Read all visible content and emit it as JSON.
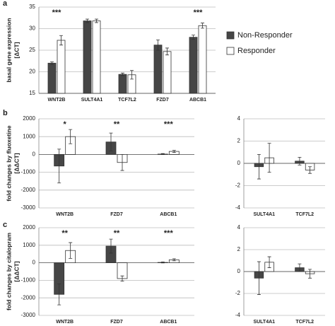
{
  "chart_data": [
    {
      "type": "bar",
      "panel": "a",
      "ylabel": "basal gene expression",
      "ylabel2": "[ΔCT]",
      "categories": [
        "WNT2B",
        "SULT4A1",
        "TCF7L2",
        "FZD7",
        "ABCB1"
      ],
      "series": [
        {
          "name": "Non-Responder",
          "color": "#464646",
          "values": [
            22,
            31.8,
            19.4,
            26.2,
            28
          ],
          "error": [
            0.3,
            0.4,
            0.3,
            1.2,
            0.5
          ]
        },
        {
          "name": "Responder",
          "color": "#ffffff",
          "values": [
            27.3,
            31.8,
            19.3,
            24.7,
            30.7
          ],
          "error": [
            1.1,
            0.4,
            1.0,
            0.8,
            0.6
          ]
        }
      ],
      "annotations": [
        "***",
        null,
        null,
        null,
        "***"
      ],
      "ylim": [
        15,
        35
      ],
      "yticks": [
        15,
        20,
        25,
        30,
        35
      ],
      "grid": true,
      "legend": "right"
    },
    {
      "type": "bar",
      "panel": "b",
      "ylabel": "fold changes by fluoxetine",
      "ylabel2": "[ΔΔCT]",
      "categories": [
        "WNT2B",
        "FZD7",
        "ABCB1"
      ],
      "series": [
        {
          "color": "#464646",
          "values": [
            -650,
            700,
            20
          ],
          "error": [
            950,
            500,
            30
          ]
        },
        {
          "color": "#ffffff",
          "values": [
            1000,
            -450,
            170
          ],
          "error": [
            400,
            450,
            60
          ]
        }
      ],
      "annotations": [
        "*",
        "**",
        "***"
      ],
      "ylim": [
        -3000,
        2000
      ],
      "yticks": [
        -3000,
        -2000,
        -1000,
        0,
        1000,
        2000
      ],
      "grid": true
    },
    {
      "type": "bar",
      "categories": [
        "SULT4A1",
        "TCF7L2"
      ],
      "series": [
        {
          "color": "#464646",
          "values": [
            -0.3,
            0.2
          ],
          "error": [
            1.1,
            0.35
          ]
        },
        {
          "color": "#ffffff",
          "values": [
            0.5,
            -0.6
          ],
          "error": [
            1.3,
            0.3
          ]
        }
      ],
      "ylim": [
        -4,
        4
      ],
      "yticks": [
        -4,
        -2,
        0,
        2,
        4
      ],
      "grid": true
    },
    {
      "type": "bar",
      "panel": "c",
      "ylabel": "fold changes by citalopram",
      "ylabel2": "[ΔΔCT]",
      "categories": [
        "WNT2B",
        "FZD7",
        "ABCB1"
      ],
      "series": [
        {
          "color": "#464646",
          "values": [
            -1800,
            950,
            20
          ],
          "error": [
            600,
            400,
            30
          ]
        },
        {
          "color": "#ffffff",
          "values": [
            700,
            -900,
            170
          ],
          "error": [
            450,
            150,
            60
          ]
        }
      ],
      "annotations": [
        "**",
        "**",
        "***"
      ],
      "ylim": [
        -3000,
        2000
      ],
      "yticks": [
        -3000,
        -2000,
        -1000,
        0,
        1000,
        2000
      ],
      "grid": true
    },
    {
      "type": "bar",
      "categories": [
        "SULT4A1",
        "TCF7L2"
      ],
      "series": [
        {
          "color": "#464646",
          "values": [
            -0.6,
            0.35
          ],
          "error": [
            1.5,
            0.35
          ]
        },
        {
          "color": "#ffffff",
          "values": [
            0.85,
            -0.2
          ],
          "error": [
            0.5,
            0.4
          ]
        }
      ],
      "ylim": [
        -4,
        4
      ],
      "yticks": [
        -4,
        -2,
        0,
        2,
        4
      ],
      "grid": true
    }
  ]
}
